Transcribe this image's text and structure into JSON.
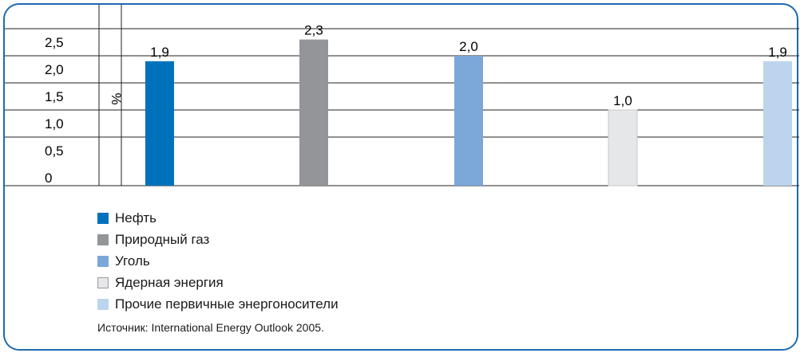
{
  "chart_data": {
    "type": "bar",
    "categories": [
      "Нефть",
      "Природный газ",
      "Уголь",
      "Ядерная энергия",
      "Прочие первичные энергоносители"
    ],
    "values": [
      1.9,
      2.3,
      2.0,
      1.0,
      1.9
    ],
    "value_labels": [
      "1,9",
      "2,3",
      "2,0",
      "1,0",
      "1,9"
    ],
    "colors": [
      "#0072bc",
      "#939598",
      "#7ba7d9",
      "#e6e7e8",
      "#bcd4ee"
    ],
    "ylabel": "%",
    "yticks": [
      "0",
      "0,5",
      "1,0",
      "1,5",
      "2,0",
      "2,5"
    ],
    "ylim": [
      0,
      2.5
    ],
    "grid": true,
    "legend_position": "bottom-left"
  },
  "legend": [
    {
      "label": "Нефть",
      "color": "#0072bc"
    },
    {
      "label": "Природный газ",
      "color": "#939598"
    },
    {
      "label": "Уголь",
      "color": "#7ba7d9"
    },
    {
      "label": "Ядерная энергия",
      "color": "#e6e7e8"
    },
    {
      "label": "Прочие первичные энергоносители",
      "color": "#bcd4ee"
    }
  ],
  "source": "Источник: International Energy Outlook 2005.",
  "accent_color": "#1e6ab0"
}
